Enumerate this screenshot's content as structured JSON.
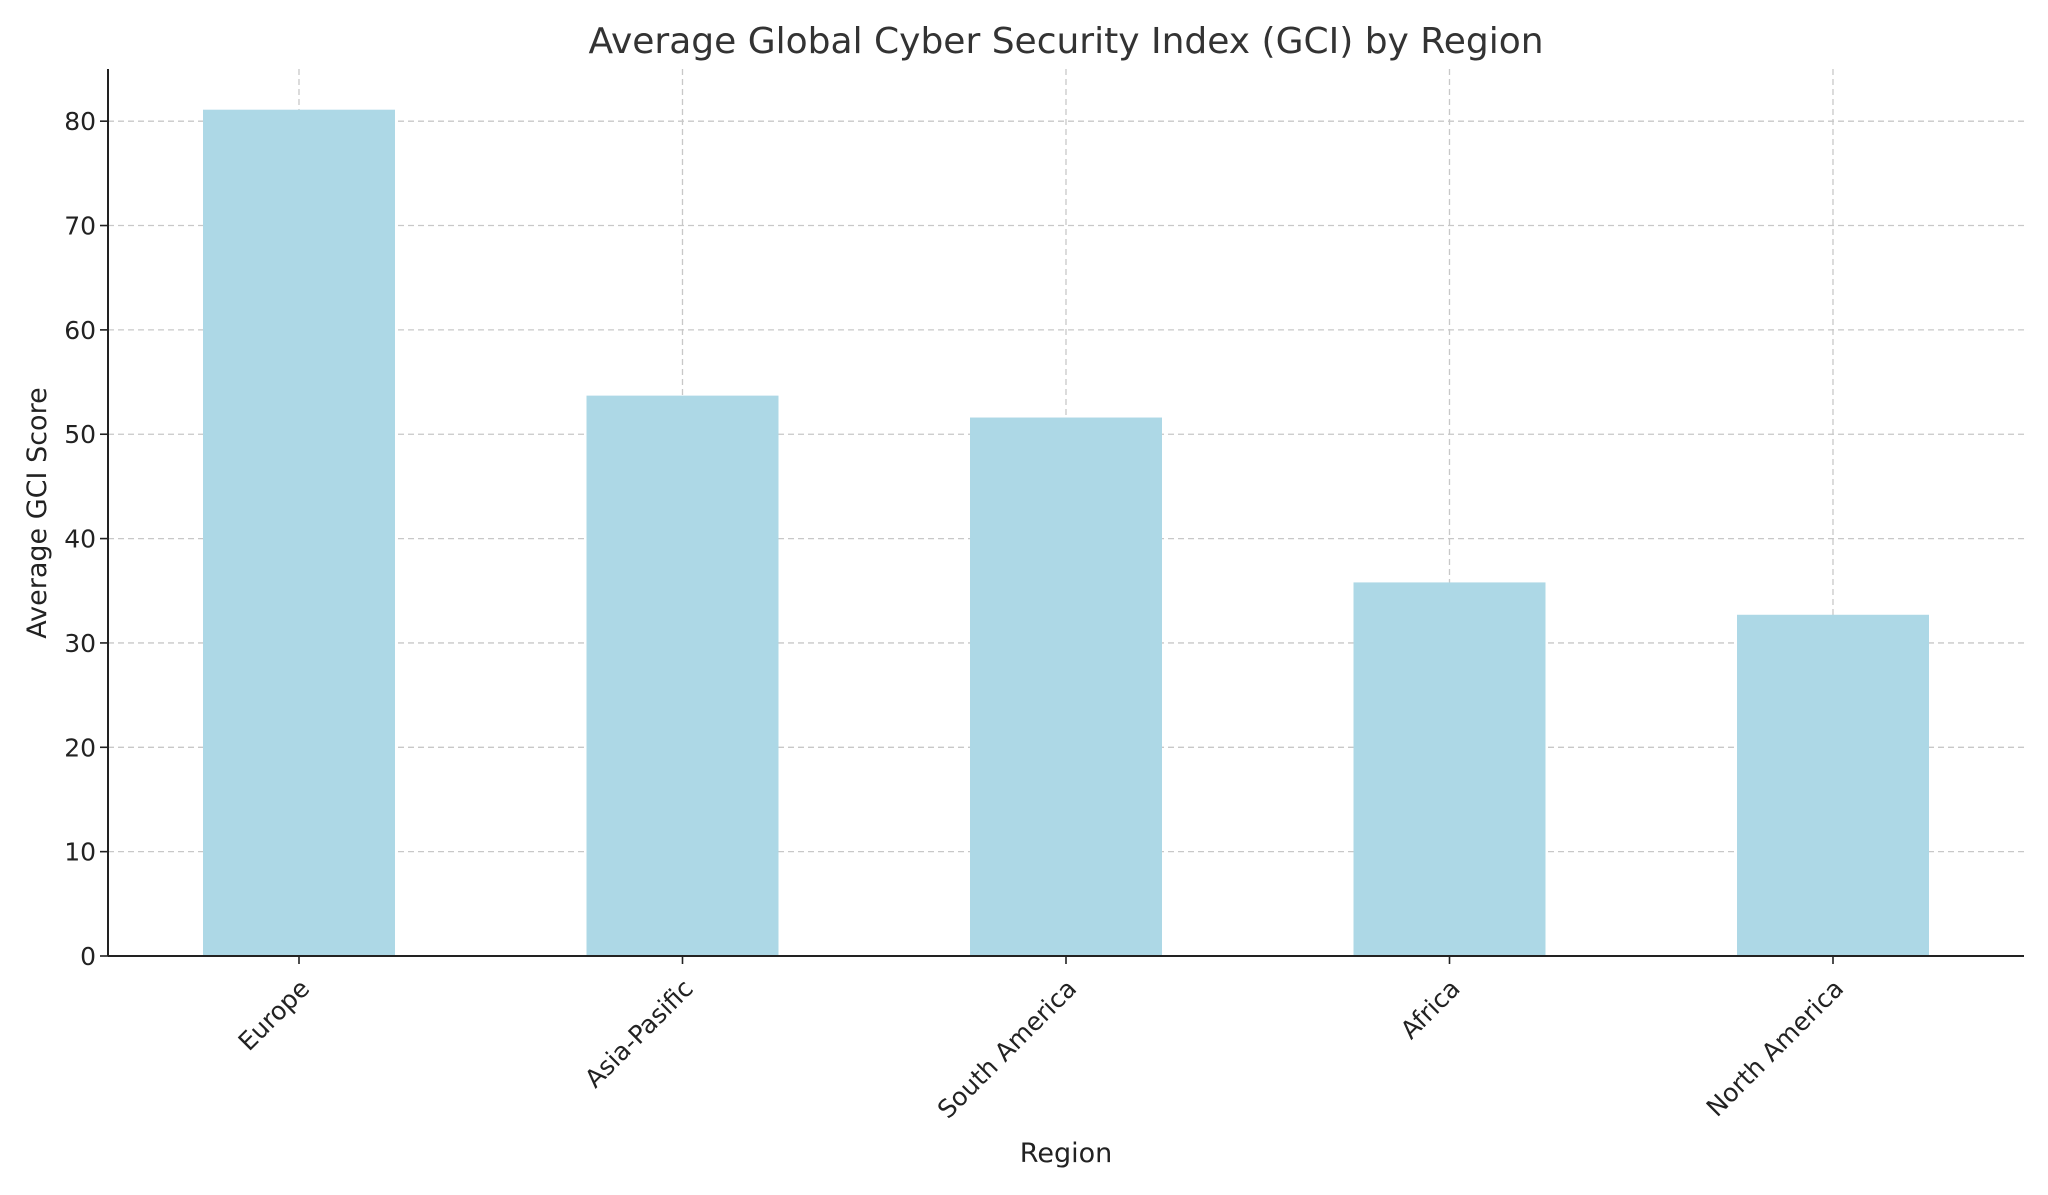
{
  "chart_data": {
    "type": "bar",
    "title": "Average Global Cyber Security Index (GCI) by Region",
    "xlabel": "Region",
    "ylabel": "Average GCI Score",
    "categories": [
      "Europe",
      "Asia-Pasific",
      "South America",
      "Africa",
      "North America"
    ],
    "values": [
      81.1,
      53.7,
      51.6,
      35.8,
      32.7
    ],
    "ylim": [
      0,
      85
    ],
    "yticks": [
      0,
      10,
      20,
      30,
      40,
      50,
      60,
      70,
      80
    ],
    "grid": true,
    "bar_color": "#add8e6"
  }
}
